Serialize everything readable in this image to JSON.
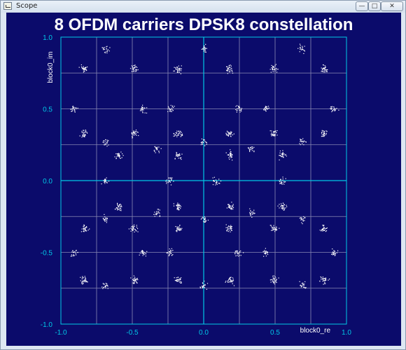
{
  "window": {
    "title": "Scope",
    "min_label": "—",
    "max_label": "□",
    "close_label": "✕"
  },
  "chart_data": {
    "type": "scatter",
    "title": "8 OFDM carriers DPSK8 constellation",
    "xlabel": "block0_re",
    "ylabel": "block0_im",
    "xlim": [
      -1.0,
      1.0
    ],
    "ylim": [
      -1.0,
      1.0
    ],
    "grid": true,
    "x_ticks": [
      {
        "value": -1.0,
        "label": "-1.0"
      },
      {
        "value": -0.5,
        "label": "-0.5"
      },
      {
        "value": 0.0,
        "label": "0.0"
      },
      {
        "value": 0.5,
        "label": "0.5"
      },
      {
        "value": 1.0,
        "label": "1.0"
      }
    ],
    "y_ticks": [
      {
        "value": 1.0,
        "label": "1.0"
      },
      {
        "value": 0.5,
        "label": "0.5"
      },
      {
        "value": 0.0,
        "label": "0.0"
      },
      {
        "value": -0.5,
        "label": "-0.5"
      },
      {
        "value": -1.0,
        "label": "-1.0"
      }
    ],
    "colors": {
      "background": "#0b0b6b",
      "axes": "#00c8e6",
      "grid": "#8a8ab4",
      "points": "#ffffff",
      "title": "#ffffff"
    },
    "clusters": [
      {
        "x": -0.84,
        "y": 0.78,
        "n": 30
      },
      {
        "x": -0.69,
        "y": 0.92,
        "n": 20
      },
      {
        "x": -0.49,
        "y": 0.78,
        "n": 30
      },
      {
        "x": -0.18,
        "y": 0.78,
        "n": 30
      },
      {
        "x": 0.0,
        "y": 0.92,
        "n": 20
      },
      {
        "x": 0.18,
        "y": 0.78,
        "n": 30
      },
      {
        "x": 0.49,
        "y": 0.78,
        "n": 30
      },
      {
        "x": 0.69,
        "y": 0.92,
        "n": 20
      },
      {
        "x": 0.84,
        "y": 0.78,
        "n": 30
      },
      {
        "x": -0.91,
        "y": 0.5,
        "n": 22
      },
      {
        "x": -0.43,
        "y": 0.5,
        "n": 22
      },
      {
        "x": -0.24,
        "y": 0.5,
        "n": 22
      },
      {
        "x": 0.24,
        "y": 0.5,
        "n": 22
      },
      {
        "x": 0.43,
        "y": 0.5,
        "n": 22
      },
      {
        "x": 0.91,
        "y": 0.5,
        "n": 22
      },
      {
        "x": -0.84,
        "y": 0.33,
        "n": 30
      },
      {
        "x": -0.69,
        "y": 0.27,
        "n": 20
      },
      {
        "x": -0.49,
        "y": 0.33,
        "n": 30
      },
      {
        "x": -0.33,
        "y": 0.22,
        "n": 20
      },
      {
        "x": -0.18,
        "y": 0.33,
        "n": 30
      },
      {
        "x": 0.0,
        "y": 0.27,
        "n": 20
      },
      {
        "x": 0.18,
        "y": 0.33,
        "n": 30
      },
      {
        "x": 0.33,
        "y": 0.22,
        "n": 20
      },
      {
        "x": 0.49,
        "y": 0.33,
        "n": 30
      },
      {
        "x": 0.69,
        "y": 0.27,
        "n": 20
      },
      {
        "x": 0.84,
        "y": 0.33,
        "n": 30
      },
      {
        "x": -0.6,
        "y": 0.18,
        "n": 30
      },
      {
        "x": -0.18,
        "y": 0.18,
        "n": 30
      },
      {
        "x": 0.18,
        "y": 0.18,
        "n": 30
      },
      {
        "x": 0.55,
        "y": 0.18,
        "n": 30
      },
      {
        "x": -0.69,
        "y": 0.0,
        "n": 22
      },
      {
        "x": -0.24,
        "y": 0.0,
        "n": 22
      },
      {
        "x": 0.09,
        "y": 0.0,
        "n": 22
      },
      {
        "x": 0.55,
        "y": 0.0,
        "n": 22
      },
      {
        "x": -0.6,
        "y": -0.18,
        "n": 30
      },
      {
        "x": -0.18,
        "y": -0.18,
        "n": 30
      },
      {
        "x": 0.18,
        "y": -0.18,
        "n": 30
      },
      {
        "x": 0.55,
        "y": -0.18,
        "n": 30
      },
      {
        "x": -0.84,
        "y": -0.33,
        "n": 30
      },
      {
        "x": -0.69,
        "y": -0.27,
        "n": 20
      },
      {
        "x": -0.49,
        "y": -0.33,
        "n": 30
      },
      {
        "x": -0.33,
        "y": -0.22,
        "n": 20
      },
      {
        "x": -0.18,
        "y": -0.33,
        "n": 30
      },
      {
        "x": 0.0,
        "y": -0.27,
        "n": 20
      },
      {
        "x": 0.18,
        "y": -0.33,
        "n": 30
      },
      {
        "x": 0.33,
        "y": -0.22,
        "n": 20
      },
      {
        "x": 0.49,
        "y": -0.33,
        "n": 30
      },
      {
        "x": 0.69,
        "y": -0.27,
        "n": 20
      },
      {
        "x": 0.84,
        "y": -0.33,
        "n": 30
      },
      {
        "x": -0.91,
        "y": -0.5,
        "n": 22
      },
      {
        "x": -0.43,
        "y": -0.5,
        "n": 22
      },
      {
        "x": -0.24,
        "y": -0.5,
        "n": 22
      },
      {
        "x": 0.24,
        "y": -0.5,
        "n": 22
      },
      {
        "x": 0.43,
        "y": -0.5,
        "n": 22
      },
      {
        "x": 0.91,
        "y": -0.5,
        "n": 22
      },
      {
        "x": -0.84,
        "y": -0.69,
        "n": 30
      },
      {
        "x": -0.69,
        "y": -0.73,
        "n": 20
      },
      {
        "x": -0.49,
        "y": -0.69,
        "n": 30
      },
      {
        "x": -0.18,
        "y": -0.69,
        "n": 30
      },
      {
        "x": 0.0,
        "y": -0.73,
        "n": 20
      },
      {
        "x": 0.18,
        "y": -0.69,
        "n": 30
      },
      {
        "x": 0.49,
        "y": -0.69,
        "n": 30
      },
      {
        "x": 0.69,
        "y": -0.73,
        "n": 20
      },
      {
        "x": 0.84,
        "y": -0.69,
        "n": 30
      }
    ]
  }
}
